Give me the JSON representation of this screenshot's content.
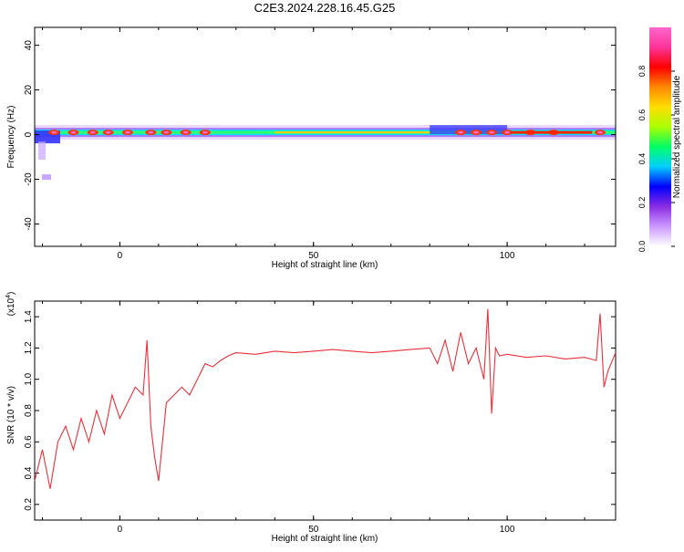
{
  "title": "C2E3.2024.228.16.45.G25",
  "chart_data": [
    {
      "type": "heatmap",
      "name": "spectrogram",
      "xlabel": "Height of straight line (km)",
      "ylabel": "Frequency (Hz)",
      "xlim": [
        -22,
        128
      ],
      "ylim": [
        -50,
        48
      ],
      "xticks": [
        0,
        50,
        100
      ],
      "yticks": [
        -40,
        -20,
        0,
        20,
        40
      ],
      "colorbar": {
        "label": "Normalized spectral amplitude",
        "range": [
          0,
          1
        ],
        "ticks": [
          "0.0",
          "0.2",
          "0.4",
          "0.6",
          "0.8"
        ],
        "tick_values": [
          0,
          0.2,
          0.4,
          0.6,
          0.8
        ],
        "colors": [
          "#ffffff",
          "#cc99ff",
          "#8a2be2",
          "#0000ff",
          "#00cfff",
          "#00ff66",
          "#aaff00",
          "#ffdd00",
          "#ff8800",
          "#ff0000",
          "#ff3399",
          "#ff66cc"
        ]
      },
      "band": {
        "description_center_hz": 0,
        "center_freq": [
          {
            "x": -22,
            "y": -3
          },
          {
            "x": -15,
            "y": -2
          },
          {
            "x": -5,
            "y": 0
          },
          {
            "x": 10,
            "y": 1
          },
          {
            "x": 30,
            "y": 1
          },
          {
            "x": 60,
            "y": 1
          },
          {
            "x": 80,
            "y": 1
          },
          {
            "x": 95,
            "y": 1
          },
          {
            "x": 110,
            "y": 1
          },
          {
            "x": 128,
            "y": 1
          }
        ],
        "hotspots_x": [
          -17,
          -12,
          -7,
          -3,
          2,
          8,
          12,
          17,
          22,
          88,
          92,
          96,
          100,
          106,
          112,
          124
        ]
      }
    },
    {
      "type": "line",
      "name": "snr",
      "xlabel": "Height of straight line (km)",
      "ylabel": "SNR (10 * v/v)",
      "multiplier_label": "(x10",
      "multiplier_exp": "4",
      "multiplier_close": ")",
      "xlim": [
        -22,
        128
      ],
      "ylim": [
        0.1,
        1.5
      ],
      "xticks": [
        0,
        50,
        100
      ],
      "yticks": [
        0.2,
        0.4,
        0.6,
        0.8,
        1.0,
        1.2,
        1.4
      ],
      "ytick_labels": [
        "0.2",
        "0.4",
        "0.6",
        "0.8",
        "1.0",
        "1.2",
        "1.4"
      ],
      "color": "#e8303a",
      "series": [
        {
          "x": [
            -22,
            -20,
            -18,
            -16,
            -14,
            -12,
            -10,
            -8,
            -6,
            -4,
            -2,
            0,
            2,
            4,
            6,
            7,
            8,
            9,
            10,
            12,
            14,
            16,
            18,
            20,
            22,
            24,
            26,
            28,
            30,
            35,
            40,
            45,
            50,
            55,
            60,
            65,
            70,
            75,
            80,
            82,
            84,
            86,
            88,
            90,
            92,
            94,
            95,
            96,
            97,
            98,
            100,
            105,
            110,
            115,
            120,
            123,
            124,
            125,
            126,
            128
          ],
          "y": [
            0.35,
            0.55,
            0.3,
            0.6,
            0.7,
            0.55,
            0.75,
            0.6,
            0.8,
            0.65,
            0.9,
            0.75,
            0.85,
            0.95,
            0.9,
            1.25,
            0.7,
            0.5,
            0.35,
            0.85,
            0.9,
            0.95,
            0.9,
            1.0,
            1.1,
            1.08,
            1.12,
            1.15,
            1.17,
            1.16,
            1.18,
            1.17,
            1.18,
            1.19,
            1.18,
            1.17,
            1.18,
            1.19,
            1.2,
            1.1,
            1.25,
            1.05,
            1.3,
            1.1,
            1.2,
            1.0,
            1.45,
            0.78,
            1.2,
            1.15,
            1.16,
            1.14,
            1.15,
            1.13,
            1.14,
            1.12,
            1.42,
            0.95,
            1.05,
            1.17
          ]
        }
      ]
    }
  ]
}
